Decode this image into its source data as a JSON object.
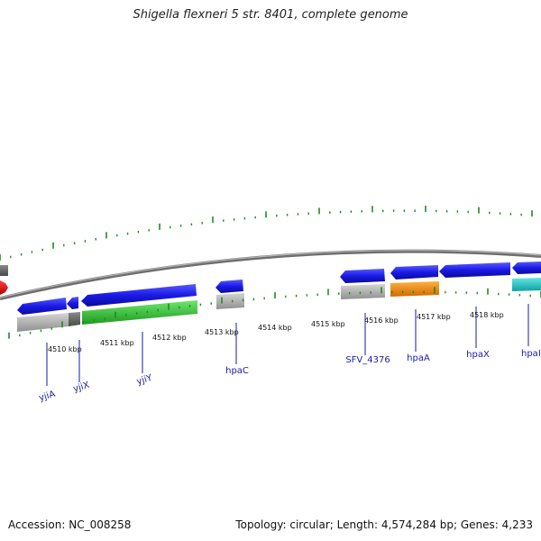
{
  "title": "Shigella flexneri 5 str. 8401, complete genome",
  "footer": {
    "accession": "Accession: NC_008258",
    "topology": "Topology: circular; Length: 4,574,284 bp; Genes: 4,233"
  },
  "kbp_labels": [
    "4510 kbp",
    "4511 kbp",
    "4512 kbp",
    "4513 kbp",
    "4514 kbp",
    "4515 kbp",
    "4516 kbp",
    "4517 kbp",
    "4518 kbp"
  ],
  "genes": [
    {
      "name": "yjiA",
      "color": "#1a1ae6"
    },
    {
      "name": "yjiX",
      "color": "#1a1ae6"
    },
    {
      "name": "yjiY",
      "color": "#1a1ae6"
    },
    {
      "name": "hpaC",
      "color": "#1a1ae6"
    },
    {
      "name": "SFV_4376",
      "color": "#1a1ae6"
    },
    {
      "name": "hpaA",
      "color": "#1a1ae6"
    },
    {
      "name": "hpaX",
      "color": "#1a1ae6"
    },
    {
      "name": "hpaI",
      "color": "#1a1ae6"
    }
  ],
  "colors": {
    "cds": "#1a1ae6",
    "backbone": "#808080",
    "ticks": "#1e8c1e",
    "cog_grey": "#b0b0b0",
    "cog_dark": "#707070",
    "cog_green": "#3cc83c",
    "cog_orange": "#ff8c00",
    "cog_cyan": "#20c8c8",
    "rna": "#e60000"
  }
}
